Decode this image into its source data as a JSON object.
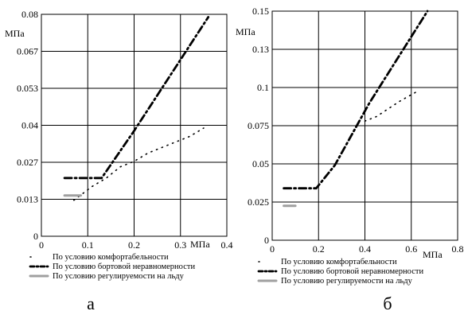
{
  "chart_data": [
    {
      "type": "line",
      "panel_label": "а",
      "ylabel": "МПа",
      "xlabel": "МПа",
      "xlim": [
        0,
        0.4
      ],
      "ylim": [
        0,
        0.08
      ],
      "x_ticks": [
        "0",
        "0.1",
        "0.2",
        "0.3",
        "0.4"
      ],
      "y_ticks": [
        "0",
        "0.013",
        "0.027",
        "0.04",
        "0.053",
        "0.067",
        "0.08"
      ],
      "grid": true,
      "series": [
        {
          "name": "По условию комфортабельности",
          "style": "dotted",
          "color": "#000000",
          "points": [
            [
              0.07,
              0.013
            ],
            [
              0.11,
              0.018
            ],
            [
              0.14,
              0.021
            ],
            [
              0.17,
              0.025
            ],
            [
              0.2,
              0.027
            ],
            [
              0.23,
              0.03
            ],
            [
              0.26,
              0.032
            ],
            [
              0.29,
              0.034
            ],
            [
              0.32,
              0.036
            ],
            [
              0.35,
              0.039
            ]
          ]
        },
        {
          "name": "По условию бортовой неравномерности",
          "style": "dash-dot",
          "color": "#000000",
          "points": [
            [
              0.05,
              0.021
            ],
            [
              0.13,
              0.021
            ],
            [
              0.2,
              0.038
            ],
            [
              0.36,
              0.079
            ]
          ]
        },
        {
          "name": "По условию регулируемости на льду",
          "style": "solid",
          "color": "#a0a0a0",
          "points": [
            [
              0.05,
              0.0147
            ],
            [
              0.085,
              0.0147
            ]
          ]
        }
      ]
    },
    {
      "type": "line",
      "panel_label": "б",
      "ylabel": "МПа",
      "xlabel": "МПа",
      "xlim": [
        0,
        0.8
      ],
      "ylim": [
        0,
        0.15
      ],
      "x_ticks": [
        "0",
        "0.2",
        "0.4",
        "0.6",
        "0.8"
      ],
      "y_ticks": [
        "0",
        "0.025",
        "0.05",
        "0.075",
        "0.1",
        "0.13",
        "0.15"
      ],
      "grid": true,
      "series": [
        {
          "name": "По условию комфортабельности",
          "style": "dotted",
          "color": "#000000",
          "points": [
            [
              0.4,
              0.078
            ],
            [
              0.45,
              0.081
            ],
            [
              0.5,
              0.086
            ],
            [
              0.55,
              0.091
            ],
            [
              0.62,
              0.097
            ]
          ]
        },
        {
          "name": "По условию бортовой неравномерности",
          "style": "dash-dot",
          "color": "#000000",
          "points": [
            [
              0.05,
              0.034
            ],
            [
              0.19,
              0.034
            ],
            [
              0.27,
              0.049
            ],
            [
              0.42,
              0.09
            ],
            [
              0.67,
              0.15
            ]
          ]
        },
        {
          "name": "По условию регулируемости на льду",
          "style": "solid",
          "color": "#a0a0a0",
          "points": [
            [
              0.05,
              0.0225
            ],
            [
              0.1,
              0.0225
            ]
          ]
        }
      ]
    }
  ]
}
